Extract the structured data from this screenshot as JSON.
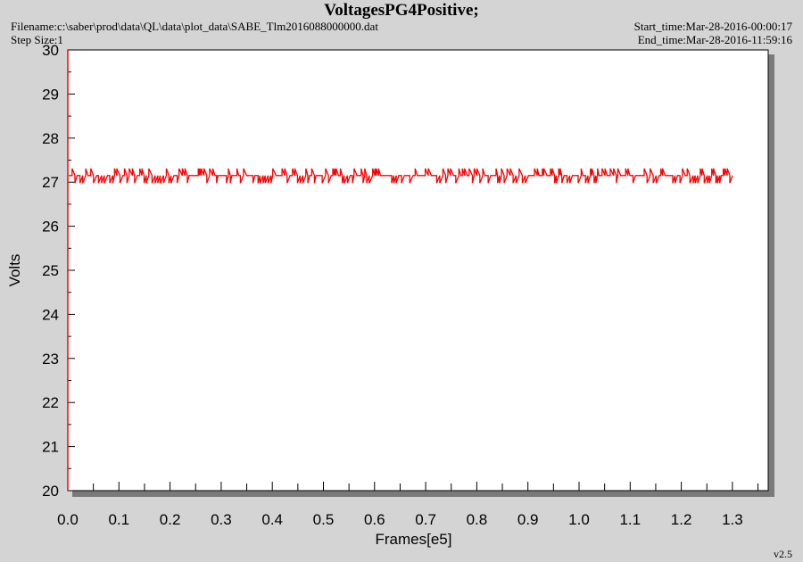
{
  "header": {
    "title": "VoltagesPG4Positive;",
    "filename": "Filename:c:\\saber\\prod\\data\\QL\\data\\plot_data\\SABE_Tlm2016088000000.dat",
    "step_size": "Step Size:1",
    "start_time": "Start_time:Mar-28-2016-00:00:17",
    "end_time": "End_time:Mar-28-2016-11:59:16"
  },
  "version": "v2.5",
  "colors": {
    "series": "#ff0000",
    "plot_bg": "#ffffff",
    "page_bg": "#d4d4d4",
    "shadow": "#7a7a7a"
  },
  "chart_data": {
    "type": "line",
    "title": "VoltagesPG4Positive;",
    "xlabel": "Frames[e5]",
    "ylabel": "Volts",
    "xlim": [
      0,
      1.37
    ],
    "ylim": [
      20,
      30
    ],
    "x_ticks": [
      "0.0",
      "0.1",
      "0.2",
      "0.3",
      "0.4",
      "0.5",
      "0.6",
      "0.7",
      "0.8",
      "0.9",
      "1.0",
      "1.1",
      "1.2",
      "1.3"
    ],
    "y_ticks": [
      "20",
      "21",
      "22",
      "23",
      "24",
      "25",
      "26",
      "27",
      "28",
      "29",
      "30"
    ],
    "grid": false,
    "legend": "none",
    "series": [
      {
        "x_range": [
          0.0,
          1.3
        ],
        "y_min": 26.98,
        "y_max": 27.31,
        "y_base": 27.15,
        "description_values": [
          27.0,
          27.15,
          27.3
        ]
      }
    ]
  }
}
